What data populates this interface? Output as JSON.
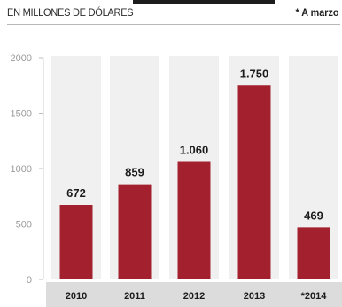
{
  "subtitle": "EN MILLONES DE DÓLARES",
  "note": "* A marzo",
  "chart_data": {
    "type": "bar",
    "title": "",
    "subtitle": "EN MILLONES DE DÓLARES",
    "note": "* A marzo",
    "xlabel": "",
    "ylabel": "",
    "categories": [
      "2010",
      "2011",
      "2012",
      "2013",
      "*2014"
    ],
    "values": [
      672,
      859,
      1060,
      1750,
      469
    ],
    "value_labels": [
      "672",
      "859",
      "1.060",
      "1.750",
      "469"
    ],
    "ylim": [
      0,
      2000
    ],
    "yticks": [
      0,
      500,
      1000,
      1500,
      2000
    ],
    "grid": false,
    "legend": "none",
    "colors": {
      "bar": "#a3202e",
      "column_band": "#f0f0f0",
      "category_band": "#dcdcdc"
    }
  }
}
